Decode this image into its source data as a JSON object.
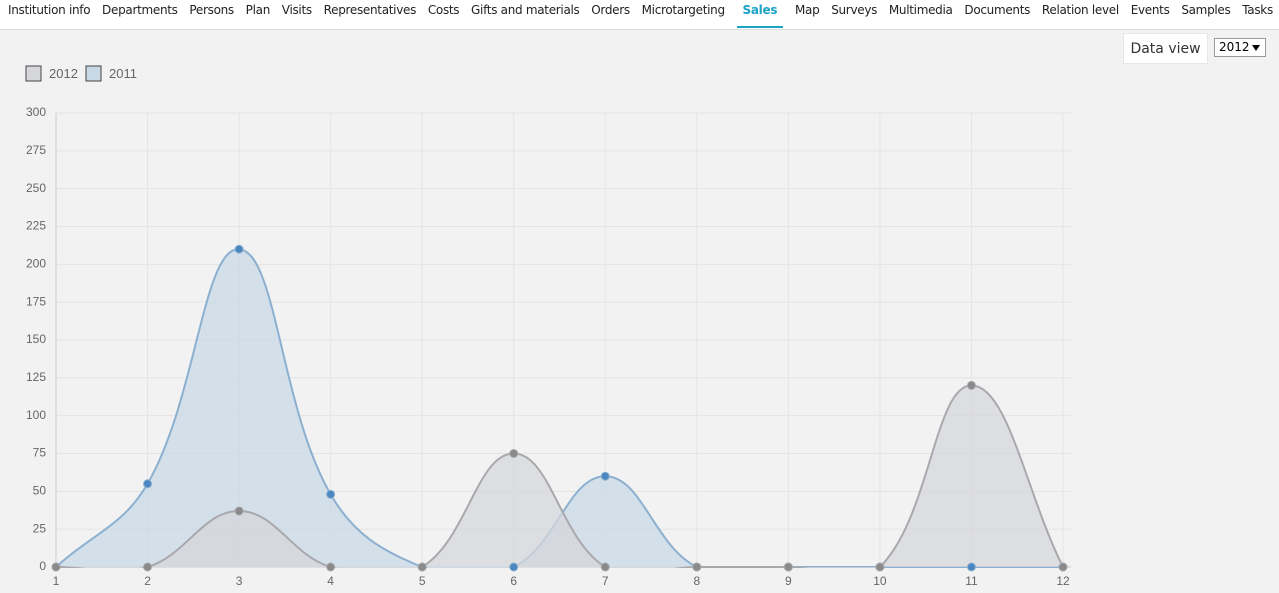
{
  "nav": {
    "tabs": [
      "Institution info",
      "Departments",
      "Persons",
      "Plan",
      "Visits",
      "Representatives",
      "Costs",
      "Gifts and materials",
      "Orders",
      "Microtargeting",
      "Sales",
      "Map",
      "Surveys",
      "Multimedia",
      "Documents",
      "Relation level",
      "Events",
      "Samples",
      "Tasks"
    ],
    "active_tab_index": 10
  },
  "controls": {
    "data_view": "Data view",
    "year_select": "2012"
  },
  "chart_data": {
    "type": "area",
    "x": [
      1,
      2,
      3,
      4,
      5,
      6,
      7,
      8,
      9,
      10,
      11,
      12
    ],
    "xlim": [
      1,
      12
    ],
    "xticks": [
      1,
      2,
      3,
      4,
      5,
      6,
      7,
      8,
      9,
      10,
      11,
      12
    ],
    "ylim": [
      0,
      300
    ],
    "yticks": [
      0,
      25,
      50,
      75,
      100,
      125,
      150,
      175,
      200,
      225,
      250,
      275,
      300
    ],
    "grid": true,
    "smooth": true,
    "series": [
      {
        "name": "2012",
        "color": "#a9a9ad",
        "fill": "#d6d7db",
        "point_color": "#8a8a8a",
        "values": [
          0,
          0,
          37,
          0,
          0,
          75,
          0,
          0,
          0,
          0,
          120,
          0
        ]
      },
      {
        "name": "2011",
        "color": "#8db0d0",
        "fill": "#c8d8e5",
        "point_color": "#4a86bf",
        "values": [
          0,
          55,
          210,
          48,
          0,
          0,
          60,
          0,
          0,
          0,
          0,
          0
        ]
      }
    ]
  }
}
